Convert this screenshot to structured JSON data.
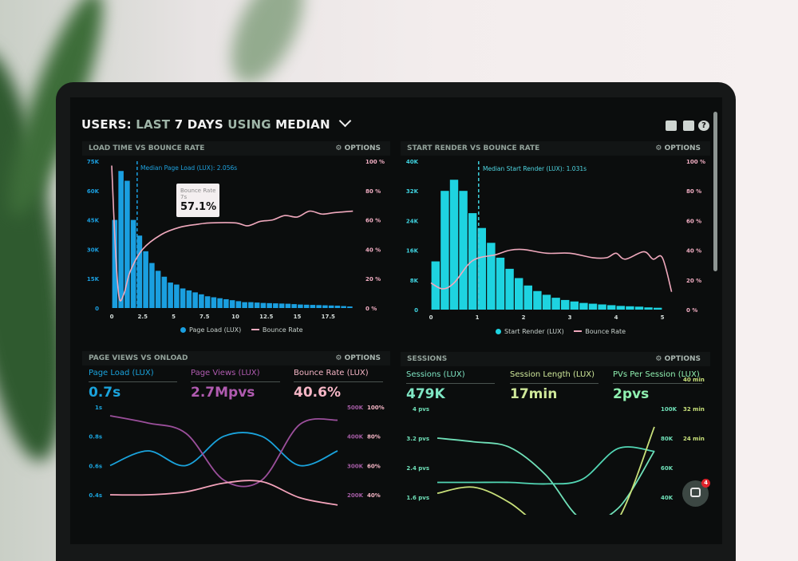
{
  "header": {
    "title_parts": [
      "USERS:",
      "LAST",
      "7 DAYS",
      "USING",
      "MEDIAN"
    ],
    "icons": [
      "monitor-icon",
      "share-icon",
      "help-icon"
    ],
    "help_glyph": "?"
  },
  "panels": {
    "load_time": {
      "title": "LOAD TIME VS BOUNCE RATE",
      "options": "OPTIONS",
      "median_label": "Median Page Load (LUX): 2.056s",
      "tooltip": {
        "label": "Bounce Rate",
        "sub": "7s",
        "value": "57.1%"
      }
    },
    "start_render": {
      "title": "START RENDER VS BOUNCE RATE",
      "options": "OPTIONS",
      "median_label": "Median Start Render (LUX): 1.031s"
    },
    "page_views": {
      "title": "PAGE VIEWS VS ONLOAD",
      "options": "OPTIONS",
      "stats": [
        {
          "label": "Page Load (LUX)",
          "value": "0.7s",
          "color": "#1aa3dc"
        },
        {
          "label": "Page Views (LUX)",
          "value": "2.7Mpvs",
          "color": "#b05bb0"
        },
        {
          "label": "Bounce Rate (LUX)",
          "value": "40.6%",
          "color": "#f6b6c6"
        }
      ]
    },
    "sessions": {
      "title": "SESSIONS",
      "options": "OPTIONS",
      "stats": [
        {
          "label": "Sessions (LUX)",
          "value": "479K",
          "color": "#7fe6c4"
        },
        {
          "label": "Session Length (LUX)",
          "value": "17min",
          "color": "#cfe89a"
        },
        {
          "label": "PVs Per Session (LUX)",
          "value": "2pvs",
          "color": "#8ff0b0"
        }
      ]
    }
  },
  "chat": {
    "badge_count": "4"
  },
  "chart_data": [
    {
      "type": "bar",
      "title": "LOAD TIME VS BOUNCE RATE",
      "x_ticks": [
        "0",
        "2.5",
        "5",
        "7.5",
        "10",
        "12.5",
        "15",
        "17.5"
      ],
      "y_ticks": [
        "0",
        "15K",
        "30K",
        "45K",
        "60K",
        "75K"
      ],
      "y2_ticks": [
        "0 %",
        "20 %",
        "40 %",
        "60 %",
        "80 %",
        "100 %"
      ],
      "ylim": [
        0,
        75
      ],
      "y2lim": [
        0,
        100
      ],
      "median": 2.056,
      "bar_step": 0.5,
      "series": [
        {
          "name": "Page Load (LUX)",
          "color": "#1a9fe0",
          "x_start": 0,
          "values": [
            45,
            70,
            65,
            45,
            37,
            29,
            23,
            19,
            16,
            13,
            12,
            10,
            9,
            8,
            7,
            6,
            5.5,
            5,
            4.5,
            4,
            3.5,
            3,
            3,
            2.8,
            2.6,
            2.5,
            2.4,
            2.3,
            2.2,
            2,
            1.8,
            1.7,
            1.6,
            1.5,
            1.4,
            1.3,
            1.2,
            1.0,
            0.8
          ]
        },
        {
          "name": "Bounce Rate",
          "color": "#f0a9bd",
          "axis": "right",
          "points": [
            [
              0,
              97
            ],
            [
              0.3,
              40
            ],
            [
              0.6,
              7
            ],
            [
              1,
              10
            ],
            [
              1.5,
              25
            ],
            [
              2.5,
              40
            ],
            [
              4,
              50
            ],
            [
              5.5,
              55
            ],
            [
              7,
              57.1
            ],
            [
              8,
              58
            ],
            [
              10,
              58
            ],
            [
              11,
              56
            ],
            [
              12,
              59
            ],
            [
              13,
              60
            ],
            [
              14,
              63
            ],
            [
              15,
              62
            ],
            [
              16,
              66
            ],
            [
              17,
              64
            ],
            [
              18,
              65
            ],
            [
              19.5,
              66
            ]
          ]
        }
      ]
    },
    {
      "type": "bar",
      "title": "START RENDER VS BOUNCE RATE",
      "x_ticks": [
        "0",
        "1",
        "2",
        "3",
        "4",
        "5"
      ],
      "y_ticks": [
        "0",
        "8K",
        "16K",
        "24K",
        "32K",
        "40K"
      ],
      "y2_ticks": [
        "0 %",
        "20 %",
        "40 %",
        "60 %",
        "80 %",
        "100 %"
      ],
      "ylim": [
        0,
        40
      ],
      "y2lim": [
        0,
        100
      ],
      "median": 1.031,
      "bar_step": 0.2,
      "series": [
        {
          "name": "Start Render (LUX)",
          "color": "#1ed3e0",
          "x_start": 0.1,
          "values": [
            13,
            32,
            35,
            32,
            26,
            22,
            18,
            14,
            11,
            8.5,
            6.5,
            5,
            4,
            3.2,
            2.6,
            2.2,
            1.8,
            1.6,
            1.4,
            1.2,
            1,
            0.9,
            0.8,
            0.6,
            0.5
          ]
        },
        {
          "name": "Bounce Rate",
          "color": "#f0a9bd",
          "axis": "right",
          "points": [
            [
              0,
              18
            ],
            [
              0.25,
              14
            ],
            [
              0.5,
              18
            ],
            [
              0.9,
              33
            ],
            [
              1.4,
              37
            ],
            [
              1.7,
              40
            ],
            [
              2,
              40.5
            ],
            [
              2.5,
              38
            ],
            [
              3,
              38
            ],
            [
              3.5,
              35
            ],
            [
              3.8,
              35
            ],
            [
              4,
              38
            ],
            [
              4.2,
              34
            ],
            [
              4.6,
              39
            ],
            [
              4.8,
              34
            ],
            [
              5,
              35
            ],
            [
              5.2,
              12
            ]
          ]
        }
      ]
    },
    {
      "type": "line",
      "title": "PAGE VIEWS VS ONLOAD",
      "y_ticks": [
        "0.4s",
        "0.6s",
        "0.8s",
        "1s"
      ],
      "y2_ticks": [
        "200K",
        "300K",
        "400K",
        "500K"
      ],
      "y3_ticks": [
        "40%",
        "60%",
        "80%",
        "100%"
      ],
      "series": [
        {
          "name": "Page Load (LUX)",
          "color": "#1aa3dc",
          "range": [
            0.4,
            1
          ],
          "values": [
            0.6,
            0.7,
            0.6,
            0.8,
            0.8,
            0.6,
            0.7
          ]
        },
        {
          "name": "Page Views (LUX)",
          "color": "#9b4f9b",
          "range": [
            200,
            500
          ],
          "values": [
            470,
            445,
            410,
            250,
            250,
            440,
            455
          ]
        },
        {
          "name": "Bounce Rate (LUX)",
          "color": "#f4a3bb",
          "range": [
            40,
            100
          ],
          "values": [
            40,
            40,
            42,
            48,
            49,
            38,
            33
          ]
        }
      ]
    },
    {
      "type": "line",
      "title": "SESSIONS",
      "y_ticks": [
        "1.6 pvs",
        "2.4 pvs",
        "3.2 pvs",
        "4 pvs"
      ],
      "y2_ticks": [
        "40K",
        "60K",
        "80K",
        "100K"
      ],
      "y3_ticks": [
        "24 min",
        "32 min",
        "40 min"
      ],
      "series": [
        {
          "name": "PVs Per Session (LUX)",
          "color": "#6fe0b8",
          "range": [
            1.6,
            4
          ],
          "values": [
            3.2,
            3.1,
            2.95,
            2.2,
            1.0,
            1.3,
            2.85
          ]
        },
        {
          "name": "Sessions (LUX)",
          "color": "#52d6b4",
          "range": [
            40,
            100
          ],
          "values": [
            50,
            50,
            50,
            49,
            52,
            73,
            71
          ]
        },
        {
          "name": "Session Length (LUX)",
          "color": "#c8e07a",
          "range": [
            24,
            40
          ],
          "values": [
            24.7,
            25.8,
            23,
            18,
            16,
            20,
            36.7
          ]
        }
      ]
    }
  ]
}
